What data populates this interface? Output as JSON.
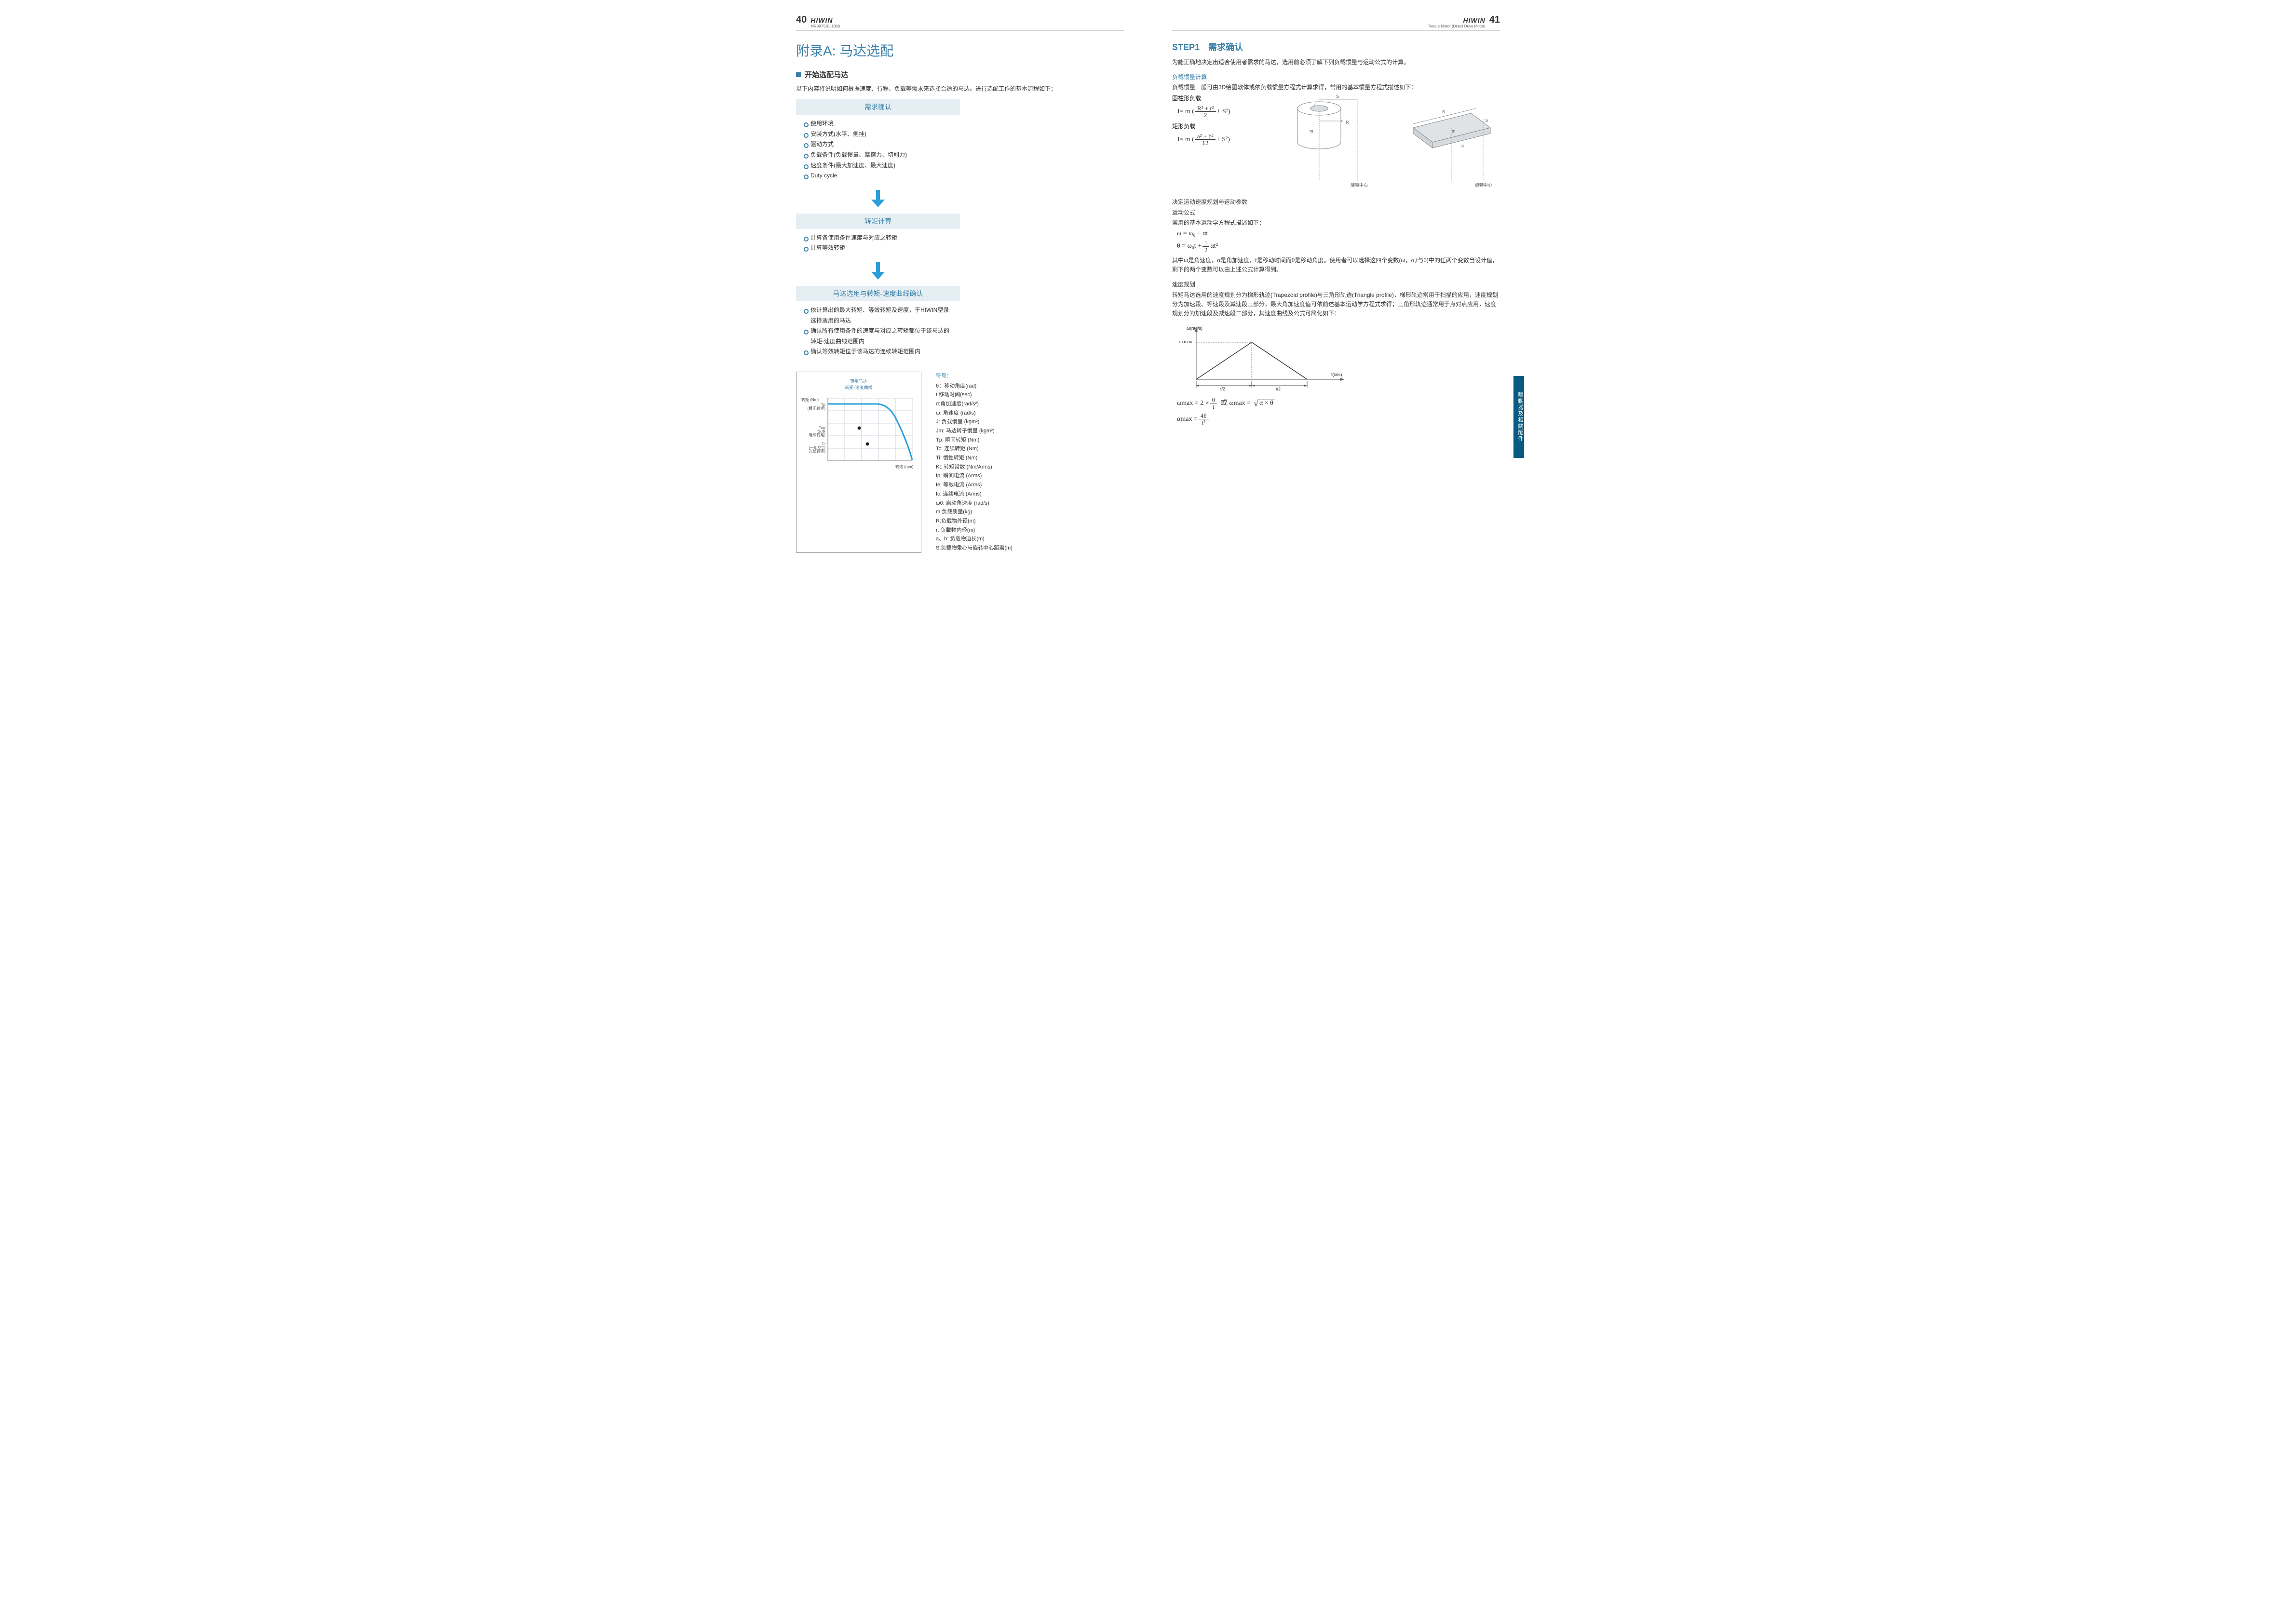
{
  "header": {
    "brand": "HIWIN",
    "left_sub": "MR99TS01-1800",
    "right_sub": "Torque Motor (Direct Drive Motor)",
    "left_page": "40",
    "right_page": "41"
  },
  "left": {
    "title": "附录A: 马达选配",
    "subsection": "开始选配马达",
    "intro": "以下内容将说明如何根据速度、行程、负载等需求来选择合适的马达。进行选配工作的基本流程如下：",
    "flow1_title": "需求确认",
    "flow1_items": [
      "使用环境",
      "安装方式(水平、侧挂)",
      "驱动方式",
      "负载条件(负载惯量、摩擦力、切削力)",
      "速度条件(最大加速度、最大速度)",
      "Duty cycle"
    ],
    "flow2_title": "转矩计算",
    "flow2_items": [
      "计算各使用条件速度与对应之转矩",
      "计算等效转矩"
    ],
    "flow3_title": "马达选用与转矩-速度曲线确认",
    "flow3_items": [
      "依计算出的最大转矩、等效转矩及速度，于HIWIN型录选择适用的马达",
      "确认所有使用条件的速度与对应之转矩都位于该马达的转矩-速度曲线范围内",
      "确认等效转矩位于该马达的连续转矩范围内"
    ],
    "chart": {
      "title1": "转矩马达",
      "title2": "转矩-速度曲线",
      "y_label": "转矩 (Nm)",
      "x_label": "转速 (rpm)",
      "tp": "Tp",
      "tp_sub": "(瞬间转矩)",
      "tcw": "Tcw",
      "tcw_sub1": "(水冷",
      "tcw_sub2": "连续转矩)",
      "tc": "Tc",
      "tc_sub1": "(一般空冷",
      "tc_sub2": "连续转矩)",
      "curve_color": "#2a9ed9",
      "grid_color": "#c8d6dd",
      "axis_color": "#888"
    },
    "legend": {
      "header": "符号：",
      "items": [
        "θ：移动角度(rad)",
        "t:移动时间(sec)",
        "α:角加速度(rad/s²)",
        "ω: 角速度 (rad/s)",
        "J: 负载惯量 (kgm²)",
        "Jm: 马达转子惯量 (kgm²)",
        "Tp: 瞬间转矩 (Nm)",
        "Tc: 连续转矩 (Nm)",
        "Ti: 惯性转矩 (Nm)",
        "Kt: 转矩常数 (Nm/Arms)",
        "Ip: 瞬间电流 (Arms)",
        "Ie: 等效电流 (Arms)",
        "Ic: 连续电流 (Arms)",
        "ω0: 启动角速度 (rad/s)",
        "m:负载质量(kg)",
        "R:负载物外径(m)",
        "r: 负载物内径(m)",
        "a、b: 负载物边长(m)",
        "S:负载物重心与旋转中心距离(m)"
      ]
    }
  },
  "right": {
    "step_title": "STEP1　需求确认",
    "intro": "为能正确地决定出适合使用者需求的马达，选用前必须了解下列负载惯量与运动公式的计算。",
    "inertia_header": "负载惯量计算",
    "inertia_text": "负载惯量一般可由3D绘图软体或依负载惯量方程式计算求得，常用的基本惯量方程式描述如下：",
    "cylinder_label": "圆柱形负载",
    "rect_label": "矩形负载",
    "formula_cyl": {
      "prefix": "J= m (",
      "num": "R² + r²",
      "den": "2",
      "suffix": "+ S²)"
    },
    "formula_rect": {
      "prefix": "J= m (",
      "num": "a² + b²",
      "den": "12",
      "suffix": "+ S²)"
    },
    "dia_labels": {
      "r": "r",
      "R": "R",
      "m": "m",
      "S": "S",
      "a": "a",
      "b": "b",
      "center": "旋轉中心"
    },
    "motion_h1": "决定运动速度规划与运动参数",
    "motion_h2": "运动公式",
    "motion_h3": "常用的基本运动学方程式描述如下：",
    "eq_omega": "ω = ω₀ + αt",
    "eq_theta_pre": "θ = ω₀t +",
    "eq_theta_num": "1",
    "eq_theta_den": "2",
    "eq_theta_suf": "αt²",
    "motion_para": "其中ω是角速度，α是角加速度，t是移动时间而θ是移动角度。使用者可以选择这四个变数(ω，α,t与θ)中的任两个变数当设计值，剩下的两个变数可以由上述公式计算得到。",
    "speed_header": "速度规划",
    "speed_para": "转矩马达选用的速度规划分为梯形轨迹(Trapezoid profile)与三角形轨迹(Triangle profile)，梯形轨迹常用于扫描的应用，速度规划分为加速段、等速段及减速段三部分，最大角加速度值可依前述基本运动学方程式求得；三角形轨迹通常用于点对点应用，速度规划分为加速段及减速段二部分，其速度曲线及公式可简化如下：",
    "tri_chart": {
      "y_label": "ω(rad/s)",
      "y_tick": "ω max",
      "x_label": "t(sec)",
      "t_half": "t/2"
    },
    "eq_wmax_pre": "ωmax = 2 ×",
    "eq_wmax_num": "θ",
    "eq_wmax_den": "t",
    "eq_wmax_or": "或  ωmax =",
    "eq_wmax_sqrt": "α × θ",
    "eq_amax_pre": "αmax =",
    "eq_amax_num": "4θ",
    "eq_amax_den": "t²"
  },
  "side_tab": "驅動器及相關配件"
}
